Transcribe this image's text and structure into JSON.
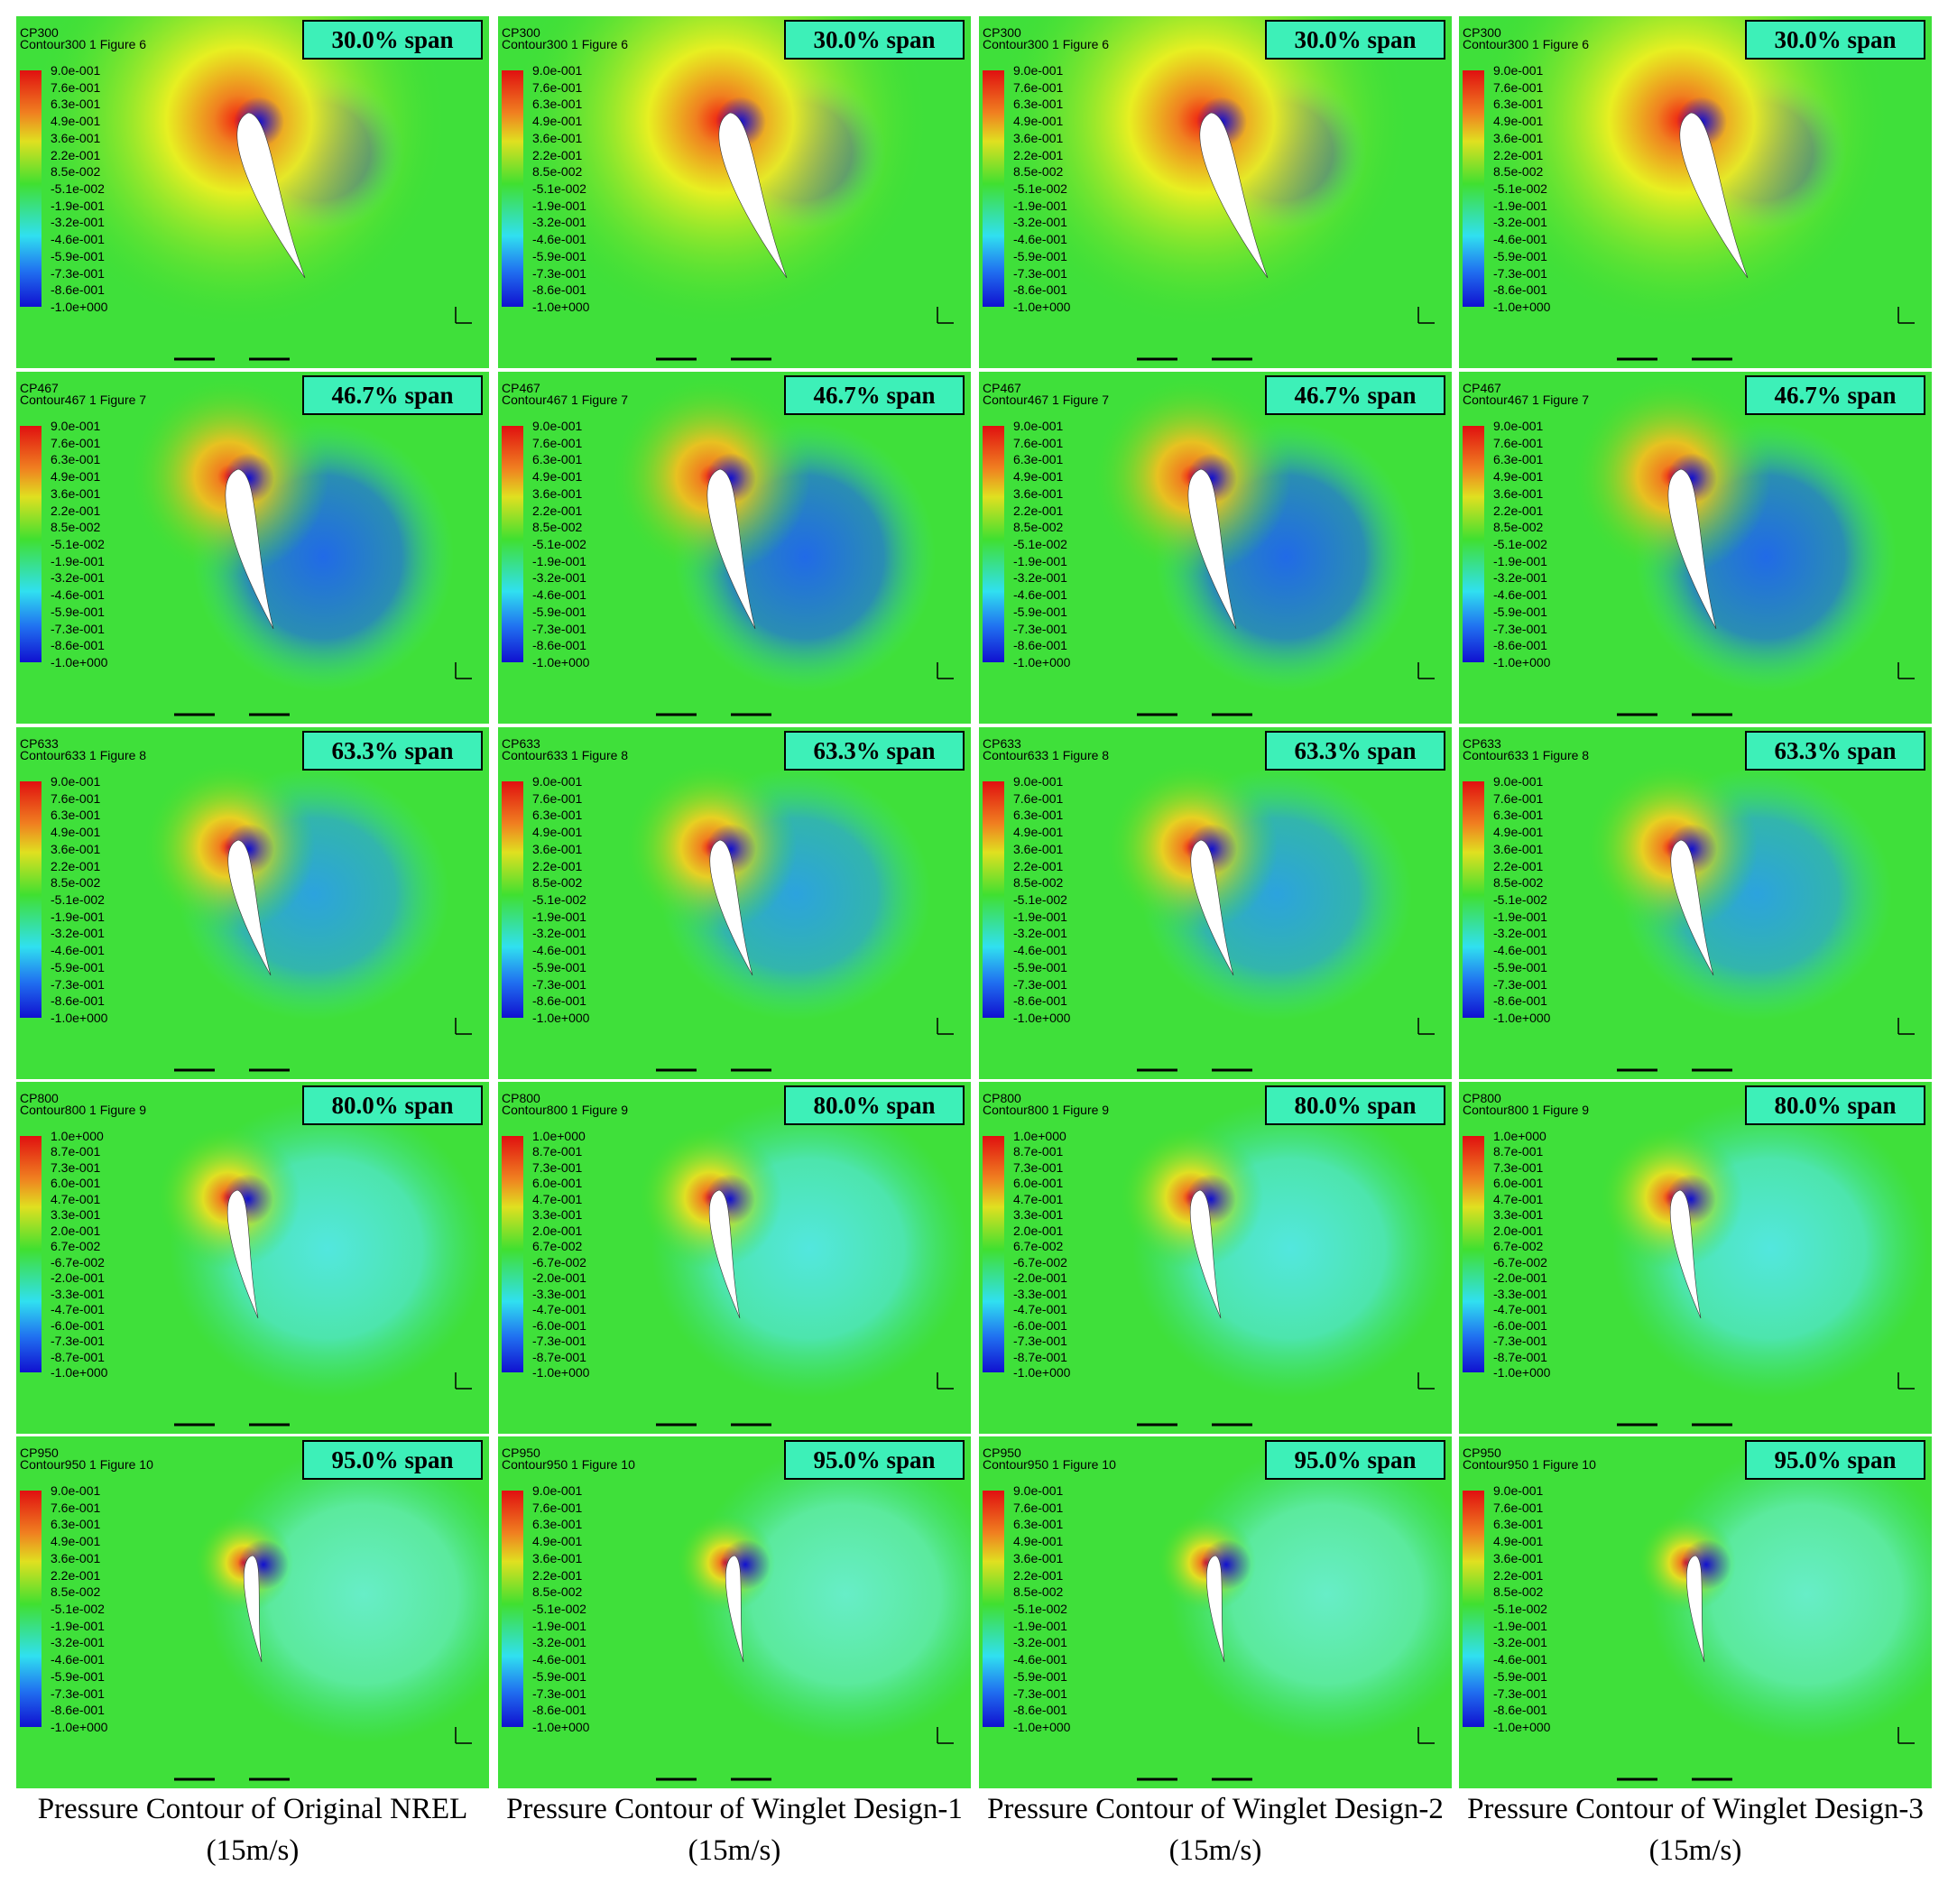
{
  "rows": [
    {
      "cp": "CP300",
      "contour": "Contour300 1 Figure 6",
      "span": "30.0% span",
      "legend": [
        "9.0e-001",
        "7.6e-001",
        "6.3e-001",
        "4.9e-001",
        "3.6e-001",
        "2.2e-001",
        "8.5e-002",
        "-5.1e-002",
        "-1.9e-001",
        "-3.2e-001",
        "-4.6e-001",
        "-5.9e-001",
        "-7.3e-001",
        "-8.6e-001",
        "-1.0e+000"
      ]
    },
    {
      "cp": "CP467",
      "contour": "Contour467 1 Figure 7",
      "span": "46.7% span",
      "legend": [
        "9.0e-001",
        "7.6e-001",
        "6.3e-001",
        "4.9e-001",
        "3.6e-001",
        "2.2e-001",
        "8.5e-002",
        "-5.1e-002",
        "-1.9e-001",
        "-3.2e-001",
        "-4.6e-001",
        "-5.9e-001",
        "-7.3e-001",
        "-8.6e-001",
        "-1.0e+000"
      ]
    },
    {
      "cp": "CP633",
      "contour": "Contour633 1 Figure 8",
      "span": "63.3% span",
      "legend": [
        "9.0e-001",
        "7.6e-001",
        "6.3e-001",
        "4.9e-001",
        "3.6e-001",
        "2.2e-001",
        "8.5e-002",
        "-5.1e-002",
        "-1.9e-001",
        "-3.2e-001",
        "-4.6e-001",
        "-5.9e-001",
        "-7.3e-001",
        "-8.6e-001",
        "-1.0e+000"
      ]
    },
    {
      "cp": "CP800",
      "contour": "Contour800 1 Figure 9",
      "span": "80.0% span",
      "legend": [
        "1.0e+000",
        "8.7e-001",
        "7.3e-001",
        "6.0e-001",
        "4.7e-001",
        "3.3e-001",
        "2.0e-001",
        "6.7e-002",
        "-6.7e-002",
        "-2.0e-001",
        "-3.3e-001",
        "-4.7e-001",
        "-6.0e-001",
        "-7.3e-001",
        "-8.7e-001",
        "-1.0e+000"
      ]
    },
    {
      "cp": "CP950",
      "contour": "Contour950 1 Figure 10",
      "span": "95.0% span",
      "legend": [
        "9.0e-001",
        "7.6e-001",
        "6.3e-001",
        "4.9e-001",
        "3.6e-001",
        "2.2e-001",
        "8.5e-002",
        "-5.1e-002",
        "-1.9e-001",
        "-3.2e-001",
        "-4.6e-001",
        "-5.9e-001",
        "-7.3e-001",
        "-8.6e-001",
        "-1.0e+000"
      ]
    }
  ],
  "columns": [
    {
      "caption": "Pressure Contour of Original NREL (15m/s)"
    },
    {
      "caption": "Pressure Contour of Winglet Design-1 (15m/s)"
    },
    {
      "caption": "Pressure Contour of Winglet Design-2 (15m/s)"
    },
    {
      "caption": "Pressure Contour of Winglet Design-3 (15m/s)"
    }
  ]
}
